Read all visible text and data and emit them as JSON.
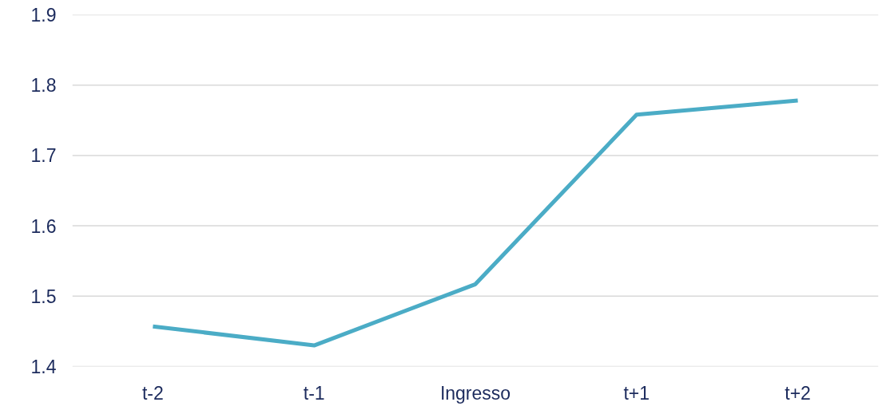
{
  "chart_data": {
    "type": "line",
    "categories": [
      "t-2",
      "t-1",
      "Ingresso",
      "t+1",
      "t+2"
    ],
    "series": [
      {
        "color": "#4bacc6",
        "values": [
          1.457,
          1.43,
          1.517,
          1.758,
          1.778
        ]
      }
    ],
    "ylim": [
      1.4,
      1.9
    ],
    "yticks": [
      1.4,
      1.5,
      1.6,
      1.7,
      1.8,
      1.9
    ],
    "grid": "y",
    "marker": "none",
    "line_style": "solid"
  }
}
